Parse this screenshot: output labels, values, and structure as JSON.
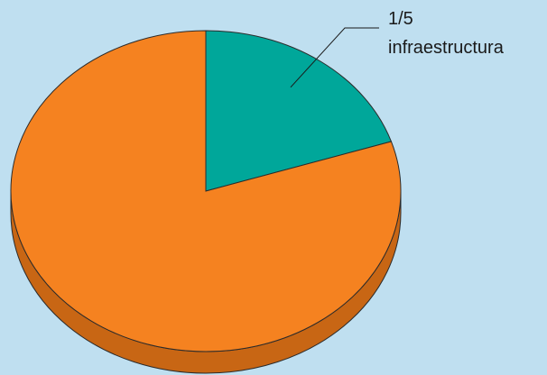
{
  "background_color": "#bfdff0",
  "chart_data": {
    "type": "pie",
    "style": "3d",
    "start_angle_deg": 0,
    "direction": "clockwise",
    "slices": [
      {
        "label": "infraestructura",
        "fraction_label": "1/5",
        "value": 0.2,
        "color": "#00a79a",
        "shadow_color": "#007a70",
        "annotated": true
      },
      {
        "label": "",
        "fraction_label": "",
        "value": 0.8,
        "color": "#f58220",
        "shadow_color": "#c86614",
        "annotated": false
      }
    ],
    "annotation": {
      "fraction_label": "1/5",
      "label": "infraestructura"
    }
  }
}
